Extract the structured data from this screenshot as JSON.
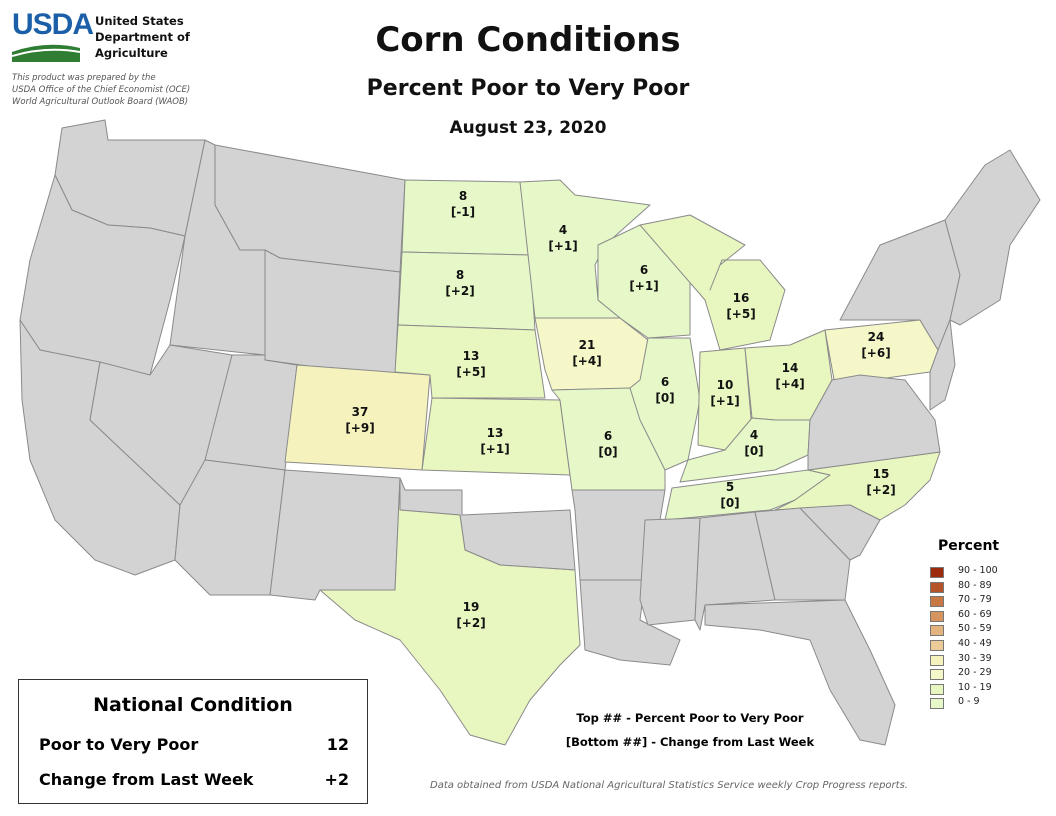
{
  "header": {
    "agency": "USDA",
    "dept": "United States\nDepartment of\nAgriculture",
    "prepared_lines": [
      "This product was prepared by the",
      "USDA Office of the Chief Economist (OCE)",
      "World Agricultural Outlook Board (WAOB)"
    ]
  },
  "title": "Corn Conditions",
  "subtitle": "Percent Poor to Very Poor",
  "date": "August 23, 2020",
  "states": {
    "ND": {
      "pct": "8",
      "chg": "[-1]"
    },
    "MN": {
      "pct": "4",
      "chg": "[+1]"
    },
    "SD": {
      "pct": "8",
      "chg": "[+2]"
    },
    "WI": {
      "pct": "6",
      "chg": "[+1]"
    },
    "MI": {
      "pct": "16",
      "chg": "[+5]"
    },
    "NE": {
      "pct": "13",
      "chg": "[+5]"
    },
    "IA": {
      "pct": "21",
      "chg": "[+4]"
    },
    "PA": {
      "pct": "24",
      "chg": "[+6]"
    },
    "CO": {
      "pct": "37",
      "chg": "[+9]"
    },
    "IL": {
      "pct": "6",
      "chg": "[0]"
    },
    "IN": {
      "pct": "10",
      "chg": "[+1]"
    },
    "OH": {
      "pct": "14",
      "chg": "[+4]"
    },
    "KS": {
      "pct": "13",
      "chg": "[+1]"
    },
    "MO": {
      "pct": "6",
      "chg": "[0]"
    },
    "KY": {
      "pct": "4",
      "chg": "[0]"
    },
    "NC": {
      "pct": "15",
      "chg": "[+2]"
    },
    "TN": {
      "pct": "5",
      "chg": "[0]"
    },
    "TX": {
      "pct": "19",
      "chg": "[+2]"
    }
  },
  "legend": {
    "title": "Percent",
    "items": [
      {
        "label": "90 - 100",
        "color": "#9c2b0e"
      },
      {
        "label": "80 - 89",
        "color": "#b5532a"
      },
      {
        "label": "70 - 79",
        "color": "#c87842"
      },
      {
        "label": "60 - 69",
        "color": "#d6955e"
      },
      {
        "label": "50 - 59",
        "color": "#e3b47e"
      },
      {
        "label": "40 - 49",
        "color": "#ebcc98"
      },
      {
        "label": "30 - 39",
        "color": "#f5f2bd"
      },
      {
        "label": "20 - 29",
        "color": "#f5f7c8"
      },
      {
        "label": "10 - 19",
        "color": "#e8f6bf"
      },
      {
        "label": "0 - 9",
        "color": "#e6f8c8"
      }
    ]
  },
  "colors": {
    "no_data": "#d3d3d3",
    "band_0_9": "#e6f8c8",
    "band_10_19": "#e8f6bf",
    "band_20_29": "#f5f7c8",
    "band_30_39": "#f5f2bd"
  },
  "national": {
    "title": "National Condition",
    "rows": [
      {
        "label": "Poor to Very Poor",
        "value": "12"
      },
      {
        "label": "Change from Last Week",
        "value": "+2"
      }
    ]
  },
  "key": {
    "top": "Top ## - Percent Poor to Very Poor",
    "bottom": "[Bottom ##] - Change from Last Week"
  },
  "source": "Data obtained from USDA National Agricultural Statistics Service weekly Crop Progress reports."
}
